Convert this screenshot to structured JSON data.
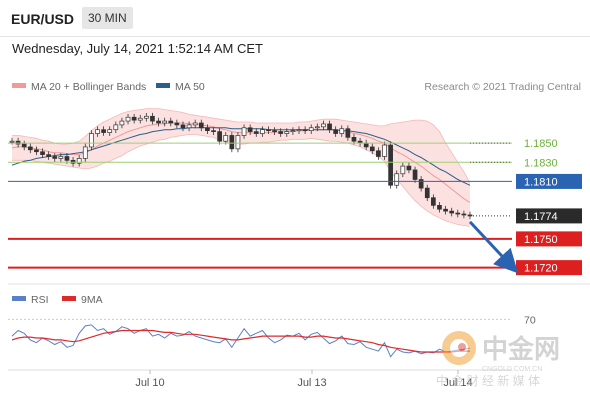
{
  "header": {
    "symbol": "EUR/USD",
    "timeframe": "30 MIN",
    "datetime": "Wednesday, July 14, 2021 1:52:14 AM CET"
  },
  "legend": {
    "items": [
      {
        "label": "MA 20 + Bollinger Bands",
        "color": "#f09a9a"
      },
      {
        "label": "MA 50",
        "color": "#2b5f8a"
      }
    ],
    "source": "Research © 2021 Trading Central"
  },
  "chart_data": {
    "type": "line",
    "xlabel": "",
    "ylabel": "",
    "x_ticks": [
      "Jul 10",
      "Jul 13",
      "Jul 14"
    ],
    "ylim": [
      1.1705,
      1.1895
    ],
    "price": [
      1.1852,
      1.1849,
      1.1846,
      1.1843,
      1.1841,
      1.1838,
      1.1836,
      1.1834,
      1.1836,
      1.1832,
      1.1829,
      1.1834,
      1.1846,
      1.186,
      1.1864,
      1.1861,
      1.1864,
      1.1869,
      1.1873,
      1.1877,
      1.1874,
      1.1876,
      1.1878,
      1.1873,
      1.1871,
      1.1873,
      1.1871,
      1.1869,
      1.1866,
      1.1869,
      1.1871,
      1.1866,
      1.1863,
      1.1862,
      1.1852,
      1.1858,
      1.1844,
      1.1858,
      1.1866,
      1.1862,
      1.186,
      1.1864,
      1.1863,
      1.1862,
      1.186,
      1.1862,
      1.1863,
      1.1864,
      1.1863,
      1.1866,
      1.1867,
      1.187,
      1.1864,
      1.186,
      1.1865,
      1.1856,
      1.1852,
      1.185,
      1.1846,
      1.1842,
      1.1836,
      1.1848,
      1.1806,
      1.1818,
      1.1826,
      1.1822,
      1.1812,
      1.1803,
      1.1793,
      1.1785,
      1.1781,
      1.1779,
      1.1777,
      1.1776,
      1.1775,
      1.1774
    ],
    "ma20": [
      1.1845,
      1.1846,
      1.1846,
      1.1845,
      1.1844,
      1.1843,
      1.1841,
      1.184,
      1.184,
      1.1839,
      1.1838,
      1.1838,
      1.184,
      1.1843,
      1.1847,
      1.185,
      1.1853,
      1.1856,
      1.1859,
      1.1862,
      1.1864,
      1.1866,
      1.1868,
      1.1869,
      1.187,
      1.187,
      1.1871,
      1.1871,
      1.1871,
      1.187,
      1.187,
      1.1869,
      1.1868,
      1.1867,
      1.1865,
      1.1864,
      1.1862,
      1.1861,
      1.1861,
      1.1861,
      1.186,
      1.1861,
      1.1861,
      1.1861,
      1.1862,
      1.1862,
      1.1862,
      1.1863,
      1.1863,
      1.1864,
      1.1864,
      1.1864,
      1.1864,
      1.1864,
      1.1863,
      1.1862,
      1.186,
      1.1859,
      1.1857,
      1.1855,
      1.1852,
      1.185,
      1.1845,
      1.1841,
      1.1838,
      1.1834,
      1.183,
      1.1826,
      1.1821,
      1.1816,
      1.1812,
      1.1807,
      1.1802,
      1.1797,
      1.1792,
      1.1788
    ],
    "bb_upper": [
      1.1858,
      1.1858,
      1.1857,
      1.1856,
      1.1855,
      1.1853,
      1.1852,
      1.185,
      1.1849,
      1.1849,
      1.185,
      1.1852,
      1.1857,
      1.1863,
      1.1868,
      1.1872,
      1.1875,
      1.1878,
      1.1881,
      1.1883,
      1.1884,
      1.1885,
      1.1886,
      1.1886,
      1.1886,
      1.1885,
      1.1884,
      1.1883,
      1.1882,
      1.188,
      1.1879,
      1.1878,
      1.1877,
      1.1876,
      1.1875,
      1.1874,
      1.1873,
      1.1872,
      1.1872,
      1.1872,
      1.1871,
      1.1871,
      1.1871,
      1.1871,
      1.1871,
      1.1871,
      1.1871,
      1.1872,
      1.1872,
      1.1873,
      1.1874,
      1.1875,
      1.1875,
      1.1875,
      1.1874,
      1.1873,
      1.1872,
      1.1871,
      1.187,
      1.1869,
      1.1868,
      1.1868,
      1.187,
      1.1871,
      1.1872,
      1.1873,
      1.1874,
      1.1874,
      1.1873,
      1.1869,
      1.1862,
      1.185,
      1.184,
      1.183,
      1.182,
      1.1808
    ],
    "bb_lower": [
      1.1832,
      1.1832,
      1.1832,
      1.1832,
      1.1831,
      1.183,
      1.1829,
      1.1828,
      1.1827,
      1.1826,
      1.1825,
      1.1824,
      1.1823,
      1.1824,
      1.1826,
      1.1829,
      1.1831,
      1.1834,
      1.1837,
      1.1841,
      1.1844,
      1.1847,
      1.1849,
      1.1851,
      1.1853,
      1.1854,
      1.1856,
      1.1857,
      1.1858,
      1.1859,
      1.1859,
      1.1858,
      1.1857,
      1.1856,
      1.1853,
      1.1851,
      1.185,
      1.1849,
      1.1849,
      1.185,
      1.185,
      1.1851,
      1.1851,
      1.1852,
      1.1853,
      1.1853,
      1.1854,
      1.1854,
      1.1854,
      1.1855,
      1.1854,
      1.1853,
      1.1852,
      1.1852,
      1.1851,
      1.185,
      1.1848,
      1.1846,
      1.1843,
      1.184,
      1.1836,
      1.1831,
      1.182,
      1.1812,
      1.1805,
      1.1797,
      1.179,
      1.1784,
      1.1779,
      1.1775,
      1.1772,
      1.1769,
      1.1767,
      1.1765,
      1.1764,
      1.1763
    ],
    "ma50": [
      1.1827,
      1.1829,
      1.1831,
      1.1832,
      1.1834,
      1.1835,
      1.1836,
      1.1837,
      1.1838,
      1.1838,
      1.1839,
      1.184,
      1.1841,
      1.1843,
      1.1845,
      1.1847,
      1.1849,
      1.1851,
      1.1853,
      1.1855,
      1.1857,
      1.1859,
      1.186,
      1.1862,
      1.1863,
      1.1864,
      1.1864,
      1.1865,
      1.1865,
      1.1866,
      1.1866,
      1.1866,
      1.1866,
      1.1866,
      1.1866,
      1.1866,
      1.1865,
      1.1865,
      1.1865,
      1.1865,
      1.1865,
      1.1865,
      1.1864,
      1.1864,
      1.1864,
      1.1864,
      1.1864,
      1.1864,
      1.1864,
      1.1864,
      1.1864,
      1.1864,
      1.1864,
      1.1864,
      1.1863,
      1.1863,
      1.1862,
      1.1861,
      1.186,
      1.1858,
      1.1856,
      1.1854,
      1.1851,
      1.1848,
      1.1845,
      1.1842,
      1.1838,
      1.1835,
      1.1831,
      1.1827,
      1.1823,
      1.182,
      1.1816,
      1.1812,
      1.1809,
      1.1806
    ],
    "levels": [
      {
        "value": 1.185,
        "label": "1.1850",
        "kind": "resistance-minor"
      },
      {
        "value": 1.183,
        "label": "1.1830",
        "kind": "resistance-minor"
      },
      {
        "value": 1.181,
        "label": "1.1810",
        "kind": "pivot"
      },
      {
        "value": 1.1774,
        "label": "1.1774",
        "kind": "last"
      },
      {
        "value": 1.175,
        "label": "1.1750",
        "kind": "support"
      },
      {
        "value": 1.172,
        "label": "1.1720",
        "kind": "support"
      }
    ],
    "arrow": {
      "from": 1.1774,
      "to": 1.172,
      "direction": "down"
    },
    "rsi": {
      "legend": [
        {
          "label": "RSI",
          "color": "#5b7fc9"
        },
        {
          "label": "9MA",
          "color": "#dd2a2a"
        }
      ],
      "ylim": [
        20,
        80
      ],
      "level_label": "70",
      "level": 70,
      "rsi": [
        52,
        58,
        55,
        48,
        45,
        50,
        47,
        43,
        46,
        40,
        42,
        55,
        63,
        64,
        58,
        60,
        54,
        57,
        62,
        60,
        55,
        58,
        60,
        52,
        54,
        50,
        55,
        52,
        53,
        57,
        52,
        50,
        48,
        46,
        45,
        49,
        40,
        50,
        60,
        52,
        55,
        58,
        50,
        45,
        48,
        53,
        52,
        55,
        48,
        54,
        56,
        50,
        44,
        47,
        52,
        44,
        43,
        46,
        40,
        38,
        36,
        45,
        30,
        38,
        35,
        34,
        36,
        33,
        35,
        34,
        38,
        35,
        36,
        37,
        38,
        39
      ],
      "ma": [
        48,
        50,
        51,
        51,
        50,
        50,
        49,
        48,
        48,
        47,
        46,
        47,
        49,
        51,
        53,
        55,
        56,
        57,
        58,
        58,
        58,
        58,
        58,
        58,
        57,
        56,
        56,
        55,
        54,
        54,
        54,
        53,
        52,
        51,
        50,
        49,
        48,
        48,
        49,
        50,
        51,
        52,
        52,
        52,
        52,
        52,
        52,
        52,
        51,
        51,
        52,
        52,
        51,
        50,
        50,
        49,
        48,
        47,
        46,
        45,
        43,
        42,
        40,
        39,
        38,
        37,
        36,
        35,
        35,
        35,
        35,
        35,
        35,
        36,
        36,
        36
      ]
    }
  }
}
